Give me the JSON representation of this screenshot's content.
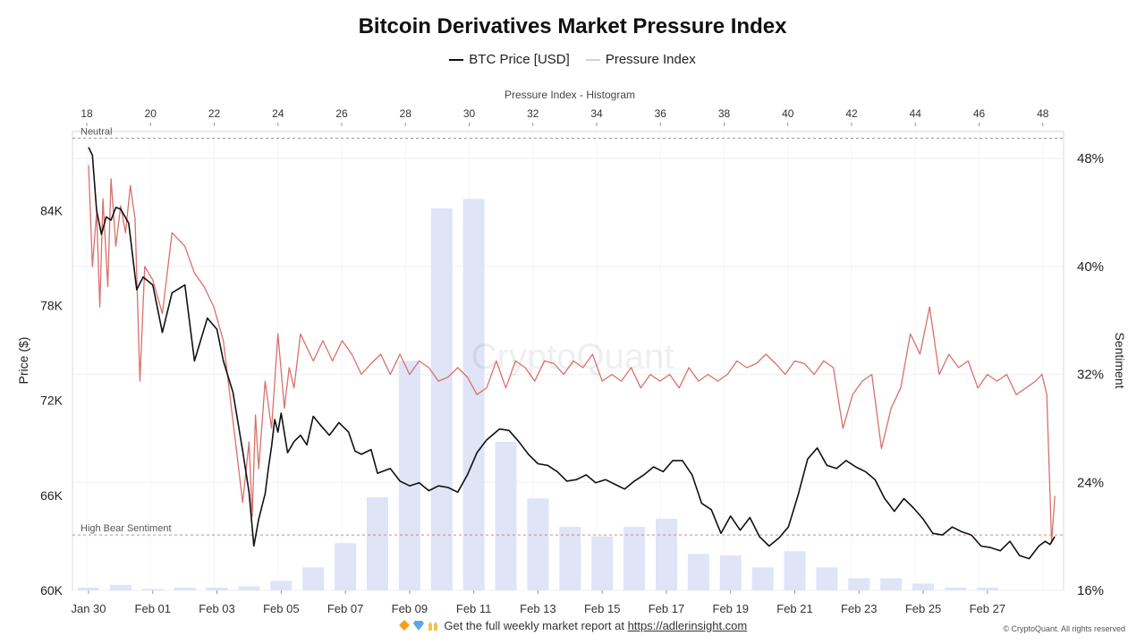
{
  "title": "Bitcoin Derivatives Market Pressure Index",
  "legend": [
    {
      "label": "BTC Price [USD]",
      "color": "#111111"
    },
    {
      "label": "Pressure Index",
      "color": "#dfe4f7"
    }
  ],
  "footer": {
    "text": "Get the full weekly market report at ",
    "link": "https://adlerinsight.com",
    "icons": [
      "diamond-icon",
      "gem-icon",
      "raised-hands-icon"
    ]
  },
  "copyright": "© CryptoQuant. All rights reserved",
  "watermark": "CryptoQuant",
  "colors": {
    "price": "#111111",
    "sentiment": "#d9706c",
    "histogram": "#dfe4f7",
    "bear_line": "#e08080",
    "neutral_line": "#999999"
  },
  "chart_data": {
    "type": "line",
    "top_axis": {
      "label": "Pressure Index - Histogram",
      "ticks": [
        18,
        20,
        22,
        24,
        26,
        28,
        30,
        32,
        34,
        36,
        38,
        40,
        42,
        44,
        46,
        48
      ],
      "range": [
        18,
        48.4
      ]
    },
    "x_axis": {
      "ticks": [
        "Jan 30",
        "Feb 01",
        "Feb 03",
        "Feb 05",
        "Feb 07",
        "Feb 09",
        "Feb 11",
        "Feb 13",
        "Feb 15",
        "Feb 17",
        "Feb 19",
        "Feb 21",
        "Feb 23",
        "Feb 25",
        "Feb 27"
      ],
      "range_days": [
        0,
        30.15
      ]
    },
    "y_left": {
      "label": "Price ($)",
      "ticks": [
        "84K",
        "78K",
        "72K",
        "66K",
        "60K"
      ],
      "tick_values": [
        84000,
        78000,
        72000,
        66000,
        60000
      ],
      "range": [
        60000,
        89000
      ]
    },
    "y_right": {
      "label": "Sentiment",
      "ticks": [
        "48%",
        "40%",
        "32%",
        "24%",
        "16%"
      ],
      "tick_values": [
        48,
        40,
        32,
        24,
        16
      ],
      "range": [
        16,
        50
      ]
    },
    "reference_lines": [
      {
        "label": "Neutral",
        "value": 49.5
      },
      {
        "label": "High Bear Sentiment",
        "value": 20.1
      }
    ],
    "histogram": {
      "x": [
        0,
        1,
        2,
        3,
        4,
        5,
        6,
        7,
        8,
        9,
        10,
        11,
        12,
        13,
        14,
        15,
        16,
        17,
        18,
        19,
        20,
        21,
        22,
        23,
        24,
        25,
        26,
        27,
        28
      ],
      "values": [
        16.2,
        16.4,
        16.1,
        16.2,
        16.2,
        16.3,
        16.7,
        17.7,
        19.5,
        22.9,
        33.0,
        44.3,
        45.0,
        27.0,
        22.8,
        20.7,
        20.0,
        20.7,
        21.3,
        18.7,
        18.6,
        17.7,
        18.9,
        17.7,
        16.9,
        16.9,
        16.5,
        16.2,
        16.2
      ]
    },
    "series": [
      {
        "name": "BTC Price [USD]",
        "x_days": [
          0.0,
          0.12,
          0.25,
          0.4,
          0.55,
          0.7,
          0.85,
          1.0,
          1.25,
          1.5,
          1.7,
          2.0,
          2.3,
          2.6,
          3.0,
          3.3,
          3.7,
          4.0,
          4.2,
          4.5,
          4.8,
          5.0,
          5.15,
          5.3,
          5.4,
          5.5,
          5.6,
          5.7,
          5.8,
          5.9,
          6.0,
          6.2,
          6.4,
          6.6,
          6.8,
          7.0,
          7.2,
          7.5,
          7.8,
          8.1,
          8.3,
          8.5,
          8.8,
          9.0,
          9.4,
          9.7,
          10.0,
          10.3,
          10.6,
          10.9,
          11.2,
          11.5,
          11.8,
          12.1,
          12.4,
          12.8,
          13.1,
          13.4,
          13.7,
          14.0,
          14.3,
          14.6,
          14.9,
          15.2,
          15.5,
          15.8,
          16.1,
          16.4,
          16.7,
          17.0,
          17.3,
          17.6,
          17.9,
          18.2,
          18.5,
          18.8,
          19.1,
          19.4,
          19.7,
          20.0,
          20.3,
          20.6,
          20.9,
          21.2,
          21.5,
          21.8,
          22.1,
          22.4,
          22.7,
          23.0,
          23.3,
          23.6,
          23.9,
          24.2,
          24.5,
          24.8,
          25.1,
          25.4,
          25.7,
          26.0,
          26.3,
          26.6,
          26.9,
          27.2,
          27.5,
          27.8,
          28.1,
          28.4,
          28.7,
          29.0,
          29.3,
          29.6,
          29.8,
          29.95,
          30.1
        ],
        "values": [
          88000,
          87500,
          84000,
          82500,
          83600,
          83400,
          84200,
          84100,
          83200,
          79000,
          79800,
          79300,
          76300,
          78800,
          79300,
          74500,
          77200,
          76500,
          74500,
          72500,
          68800,
          66200,
          62800,
          64500,
          65300,
          66100,
          67700,
          69100,
          70800,
          70000,
          71200,
          68700,
          69400,
          69800,
          69200,
          71000,
          70500,
          69800,
          70600,
          70000,
          68800,
          68600,
          68900,
          67400,
          67700,
          66900,
          66600,
          66800,
          66300,
          66600,
          66500,
          66200,
          67300,
          68700,
          69500,
          70200,
          70100,
          69400,
          68600,
          68000,
          67900,
          67500,
          66900,
          67000,
          67300,
          66800,
          67000,
          66700,
          66400,
          66900,
          67300,
          67800,
          67500,
          68200,
          68200,
          67300,
          65500,
          65100,
          63600,
          64700,
          63800,
          64600,
          63400,
          62800,
          63300,
          64000,
          66000,
          68300,
          69000,
          67900,
          67700,
          68200,
          67800,
          67500,
          67000,
          65800,
          65000,
          65800,
          65200,
          64500,
          63600,
          63500,
          64000,
          63700,
          63500,
          62800,
          62700,
          62500,
          63100,
          62200,
          62000,
          62800,
          63100,
          62900,
          63400
        ]
      },
      {
        "name": "Sentiment",
        "x_days": [
          0.0,
          0.12,
          0.25,
          0.35,
          0.45,
          0.6,
          0.7,
          0.85,
          1.0,
          1.15,
          1.3,
          1.45,
          1.6,
          1.75,
          2.0,
          2.3,
          2.6,
          3.0,
          3.3,
          3.6,
          3.9,
          4.2,
          4.5,
          4.8,
          5.0,
          5.1,
          5.2,
          5.3,
          5.5,
          5.7,
          5.9,
          6.1,
          6.25,
          6.4,
          6.6,
          6.8,
          7.0,
          7.3,
          7.6,
          7.9,
          8.2,
          8.5,
          8.8,
          9.1,
          9.4,
          9.7,
          10.0,
          10.3,
          10.6,
          10.9,
          11.2,
          11.5,
          11.8,
          12.1,
          12.4,
          12.7,
          13.0,
          13.3,
          13.6,
          13.9,
          14.2,
          14.5,
          14.8,
          15.1,
          15.4,
          15.7,
          16.0,
          16.3,
          16.6,
          16.9,
          17.2,
          17.5,
          17.8,
          18.1,
          18.4,
          18.7,
          19.0,
          19.3,
          19.6,
          19.9,
          20.2,
          20.5,
          20.8,
          21.1,
          21.4,
          21.7,
          22.0,
          22.3,
          22.6,
          22.9,
          23.2,
          23.5,
          23.8,
          24.1,
          24.4,
          24.7,
          25.0,
          25.3,
          25.6,
          25.9,
          26.2,
          26.5,
          26.8,
          27.1,
          27.4,
          27.7,
          28.0,
          28.3,
          28.6,
          28.9,
          29.2,
          29.5,
          29.7,
          29.85,
          30.0,
          30.1
        ],
        "values": [
          47.5,
          40.0,
          44.0,
          37.0,
          45.0,
          38.5,
          46.5,
          41.5,
          44.5,
          42.5,
          46.0,
          43.5,
          31.5,
          40.0,
          39.0,
          36.5,
          42.5,
          41.5,
          39.5,
          38.5,
          37.0,
          34.5,
          28.5,
          22.5,
          27.0,
          21.5,
          29.0,
          25.0,
          31.5,
          28.0,
          35.0,
          29.5,
          32.5,
          31.0,
          35.0,
          34.0,
          33.0,
          34.5,
          33.0,
          34.5,
          33.5,
          32.0,
          32.8,
          33.5,
          32.0,
          33.5,
          32.0,
          33.0,
          32.5,
          31.5,
          31.8,
          32.5,
          31.8,
          30.5,
          31.0,
          33.0,
          31.0,
          33.0,
          32.5,
          31.5,
          33.0,
          32.8,
          32.0,
          33.0,
          32.5,
          33.5,
          31.5,
          32.0,
          31.5,
          32.5,
          31.0,
          32.0,
          31.5,
          32.0,
          31.0,
          32.5,
          31.5,
          32.0,
          31.5,
          32.0,
          33.0,
          32.5,
          32.8,
          33.5,
          32.8,
          32.0,
          33.0,
          32.8,
          32.0,
          33.0,
          32.5,
          28.0,
          30.5,
          31.5,
          32.0,
          26.5,
          29.5,
          31.0,
          35.0,
          33.5,
          37.0,
          32.0,
          33.5,
          32.5,
          33.0,
          31.0,
          32.0,
          31.5,
          32.0,
          30.5,
          31.0,
          31.5,
          32.0,
          30.5,
          19.5,
          23.0
        ]
      }
    ],
    "grid": true,
    "legend_position": "top-center"
  }
}
